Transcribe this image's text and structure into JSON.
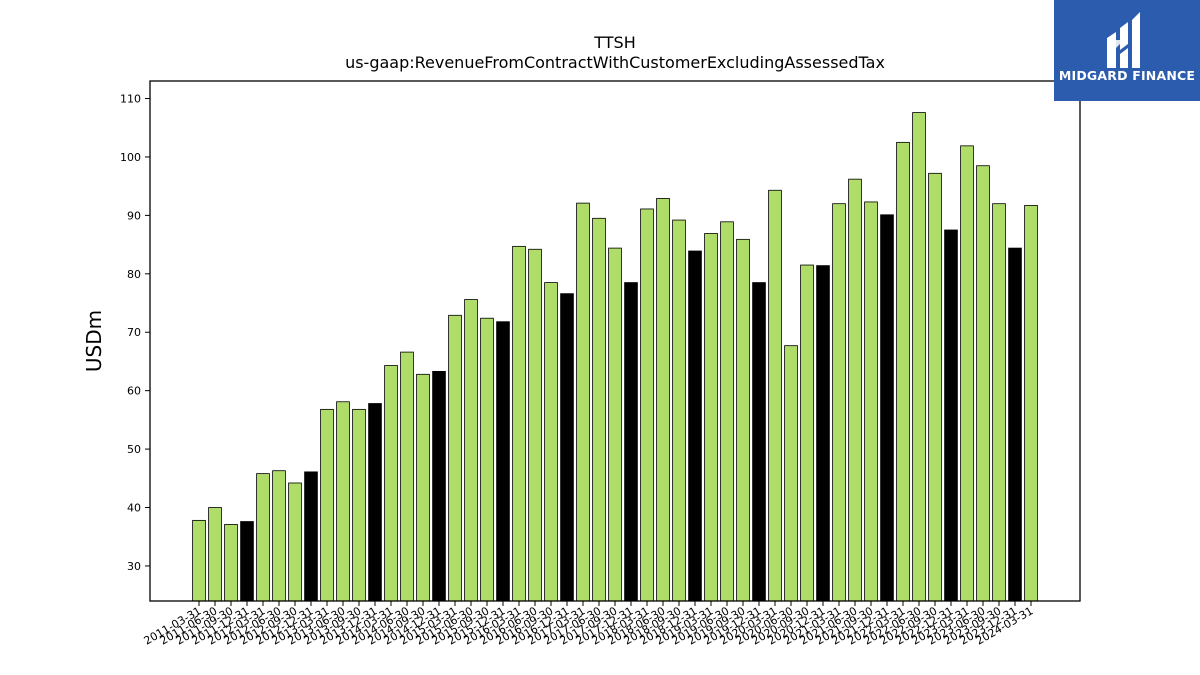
{
  "chart_data": {
    "type": "bar",
    "title": "TTSH",
    "subtitle": "us-gaap:RevenueFromContractWithCustomerExcludingAssessedTax",
    "xlabel": "",
    "ylabel": "USDm",
    "ylim": [
      24,
      113
    ],
    "yticks": [
      30,
      40,
      50,
      60,
      70,
      80,
      90,
      100,
      110
    ],
    "grid": false,
    "legend": "none",
    "colors": {
      "quarter": "#b0dc6a",
      "annual": "#000000",
      "edge": "#000000"
    },
    "categories": [
      "2011-03-31",
      "2011-06-30",
      "2011-09-30",
      "2011-12-31",
      "2012-03-31",
      "2012-06-30",
      "2012-09-30",
      "2012-12-31",
      "2013-03-31",
      "2013-06-30",
      "2013-09-30",
      "2013-12-31",
      "2014-03-31",
      "2014-06-30",
      "2014-09-30",
      "2014-12-31",
      "2015-03-31",
      "2015-06-30",
      "2015-09-30",
      "2015-12-31",
      "2016-03-31",
      "2016-06-30",
      "2016-09-30",
      "2016-12-31",
      "2017-03-31",
      "2017-06-30",
      "2017-09-30",
      "2017-12-31",
      "2018-03-31",
      "2018-06-30",
      "2018-09-30",
      "2018-12-31",
      "2019-03-31",
      "2019-06-30",
      "2019-09-30",
      "2019-12-31",
      "2020-03-31",
      "2020-06-30",
      "2020-09-30",
      "2020-12-31",
      "2021-03-31",
      "2021-06-30",
      "2021-09-30",
      "2021-12-31",
      "2022-03-31",
      "2022-06-30",
      "2022-09-30",
      "2022-12-31",
      "2023-03-31",
      "2023-06-30",
      "2023-09-30",
      "2023-12-31",
      "2024-03-31"
    ],
    "values": [
      37.8,
      40.0,
      37.1,
      37.6,
      45.8,
      46.3,
      44.2,
      46.1,
      56.8,
      58.1,
      56.8,
      57.8,
      64.3,
      66.6,
      62.8,
      63.3,
      72.9,
      75.6,
      72.4,
      71.8,
      84.7,
      84.2,
      78.5,
      76.6,
      92.1,
      89.5,
      84.4,
      78.5,
      91.1,
      92.9,
      89.2,
      83.9,
      86.9,
      88.9,
      85.9,
      78.5,
      94.3,
      67.7,
      81.5,
      81.4,
      92.0,
      96.2,
      92.3,
      90.1,
      102.5,
      107.6,
      97.2,
      87.5,
      101.9,
      98.5,
      92.0,
      84.4,
      91.7
    ],
    "annual": [
      false,
      false,
      false,
      true,
      false,
      false,
      false,
      true,
      false,
      false,
      false,
      true,
      false,
      false,
      false,
      true,
      false,
      false,
      false,
      true,
      false,
      false,
      false,
      true,
      false,
      false,
      false,
      true,
      false,
      false,
      false,
      true,
      false,
      false,
      false,
      true,
      false,
      false,
      false,
      true,
      false,
      false,
      false,
      true,
      false,
      false,
      false,
      true,
      false,
      false,
      false,
      true,
      false
    ]
  },
  "brand": {
    "name": "MIDGARD FINANCE",
    "logo_icon": "midgard-logo-icon",
    "color": "#2c5cad"
  }
}
